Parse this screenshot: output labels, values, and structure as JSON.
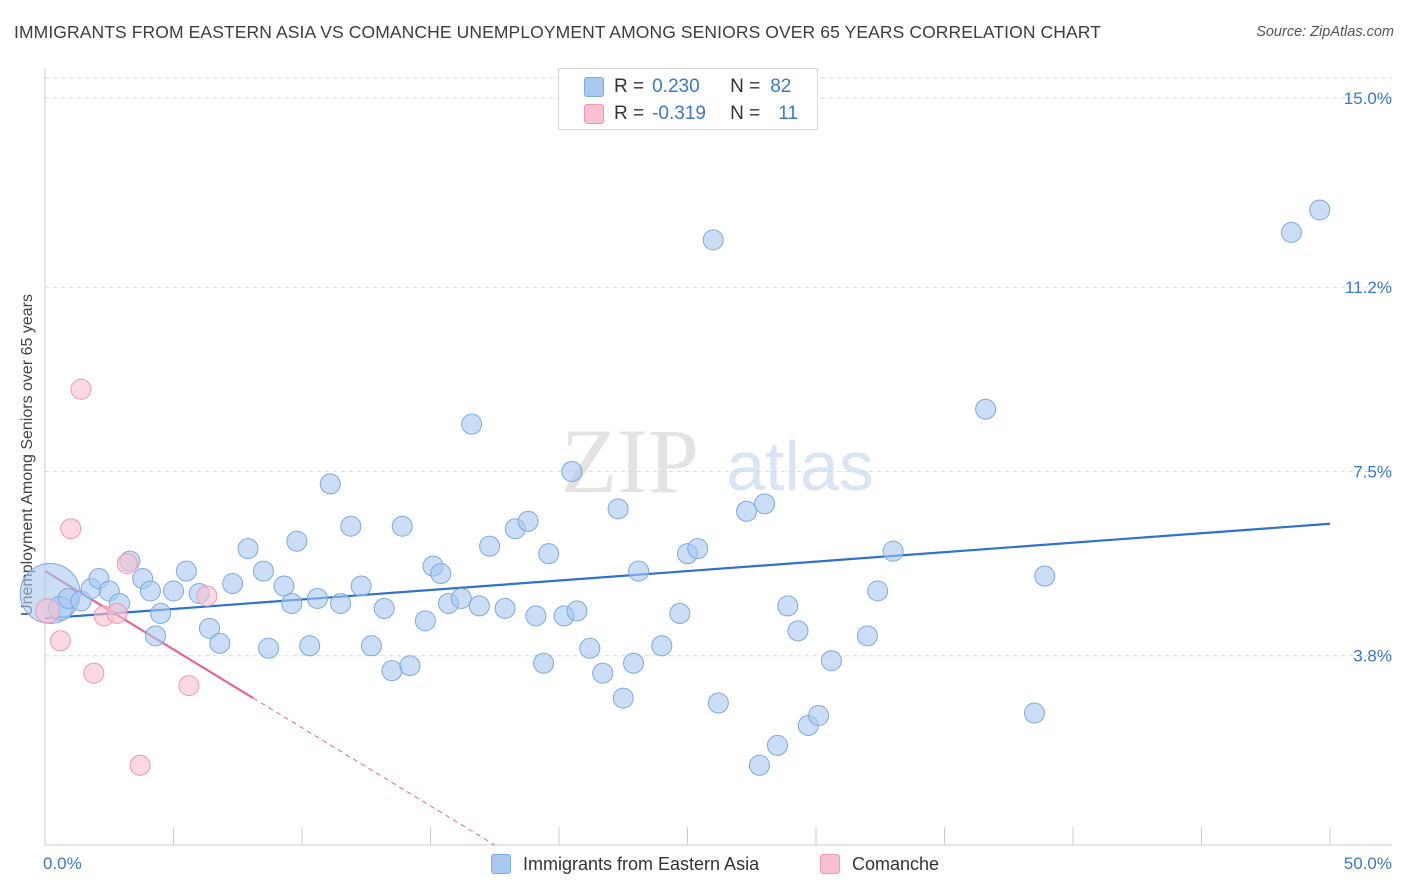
{
  "title": "IMMIGRANTS FROM EASTERN ASIA VS COMANCHE UNEMPLOYMENT AMONG SENIORS OVER 65 YEARS CORRELATION CHART",
  "source": "Source: ZipAtlas.com",
  "watermark": {
    "zip": "ZIP",
    "atlas": "atlas"
  },
  "legend": {
    "series1": {
      "r_label": "R =",
      "r_value": "0.230",
      "n_label": "N =",
      "n_value": "82",
      "color": "#a9c8f0",
      "border": "#7aaae0"
    },
    "series2": {
      "r_label": "R =",
      "r_value": "-0.319",
      "n_label": "N =",
      "n_value": "11",
      "color": "#f7bfd0",
      "border": "#ee98b4"
    }
  },
  "bottom_legend": {
    "series1_label": "Immigrants from Eastern Asia",
    "series2_label": "Comanche"
  },
  "chart_data": {
    "type": "scatter",
    "title": "IMMIGRANTS FROM EASTERN ASIA VS COMANCHE UNEMPLOYMENT AMONG SENIORS OVER 65 YEARS CORRELATION CHART",
    "xlabel": "",
    "ylabel": "Unemployment Among Seniors over 65 years",
    "xlim": [
      0,
      50
    ],
    "ylim": [
      0,
      15.4
    ],
    "x_tick_labels": [
      "0.0%",
      "50.0%"
    ],
    "y_ticks": [
      3.8,
      7.5,
      11.2,
      15.0
    ],
    "y_tick_labels": [
      "3.8%",
      "7.5%",
      "11.2%",
      "15.0%"
    ],
    "grid": "horizontal dashed",
    "series": [
      {
        "name": "Immigrants from Eastern Asia",
        "color": "#a9c8f0",
        "edge": "#7aaae0",
        "trend": {
          "x": [
            0,
            50
          ],
          "y": [
            4.55,
            6.45
          ],
          "color": "#2f72cc"
        },
        "points": [
          [
            0.2,
            5.05,
            30
          ],
          [
            0.6,
            4.75,
            12
          ],
          [
            0.9,
            4.95,
            10
          ],
          [
            1.4,
            4.9,
            10
          ],
          [
            1.8,
            5.15,
            10
          ],
          [
            2.1,
            5.35,
            10
          ],
          [
            2.5,
            5.1,
            10
          ],
          [
            2.9,
            4.85,
            10
          ],
          [
            3.3,
            5.7,
            10
          ],
          [
            3.8,
            5.35,
            10
          ],
          [
            4.1,
            5.1,
            10
          ],
          [
            4.5,
            4.65,
            10
          ],
          [
            5.0,
            5.1,
            10
          ],
          [
            4.3,
            4.2,
            10
          ],
          [
            5.5,
            5.5,
            10
          ],
          [
            6.0,
            5.05,
            10
          ],
          [
            6.4,
            4.35,
            10
          ],
          [
            6.8,
            4.05,
            10
          ],
          [
            7.3,
            5.25,
            10
          ],
          [
            7.9,
            5.95,
            10
          ],
          [
            8.5,
            5.5,
            10
          ],
          [
            8.7,
            3.95,
            10
          ],
          [
            9.3,
            5.2,
            10
          ],
          [
            9.6,
            4.85,
            10
          ],
          [
            9.8,
            6.1,
            10
          ],
          [
            10.3,
            4.0,
            10
          ],
          [
            10.6,
            4.95,
            10
          ],
          [
            11.1,
            7.25,
            10
          ],
          [
            11.5,
            4.85,
            10
          ],
          [
            11.9,
            6.4,
            10
          ],
          [
            12.3,
            5.2,
            10
          ],
          [
            12.7,
            4.0,
            10
          ],
          [
            13.2,
            4.75,
            10
          ],
          [
            13.5,
            3.5,
            10
          ],
          [
            13.9,
            6.4,
            10
          ],
          [
            14.2,
            3.6,
            10
          ],
          [
            14.8,
            4.5,
            10
          ],
          [
            15.1,
            5.6,
            10
          ],
          [
            15.4,
            5.45,
            10
          ],
          [
            15.7,
            4.85,
            10
          ],
          [
            16.2,
            4.95,
            10
          ],
          [
            16.6,
            8.45,
            10
          ],
          [
            16.9,
            4.8,
            10
          ],
          [
            17.3,
            6.0,
            10
          ],
          [
            17.9,
            4.75,
            10
          ],
          [
            18.3,
            6.35,
            10
          ],
          [
            18.8,
            6.5,
            10
          ],
          [
            19.1,
            4.6,
            10
          ],
          [
            19.4,
            3.65,
            10
          ],
          [
            19.6,
            5.85,
            10
          ],
          [
            20.2,
            4.6,
            10
          ],
          [
            20.5,
            7.5,
            10
          ],
          [
            20.7,
            4.7,
            10
          ],
          [
            21.2,
            3.95,
            10
          ],
          [
            21.7,
            3.45,
            10
          ],
          [
            22.3,
            6.75,
            10
          ],
          [
            22.5,
            2.95,
            10
          ],
          [
            22.9,
            3.65,
            10
          ],
          [
            23.1,
            5.5,
            10
          ],
          [
            24.0,
            4.0,
            10
          ],
          [
            24.7,
            4.65,
            10
          ],
          [
            25.0,
            5.85,
            10
          ],
          [
            25.4,
            5.95,
            10
          ],
          [
            26.0,
            12.15,
            10
          ],
          [
            26.2,
            2.85,
            10
          ],
          [
            27.3,
            6.7,
            10
          ],
          [
            27.8,
            1.6,
            10
          ],
          [
            28.0,
            6.85,
            10
          ],
          [
            28.5,
            2.0,
            10
          ],
          [
            28.9,
            4.8,
            10
          ],
          [
            29.3,
            4.3,
            10
          ],
          [
            29.7,
            2.4,
            10
          ],
          [
            30.1,
            2.6,
            10
          ],
          [
            30.6,
            3.7,
            10
          ],
          [
            32.0,
            4.2,
            10
          ],
          [
            32.4,
            5.1,
            10
          ],
          [
            33.0,
            5.9,
            10
          ],
          [
            36.6,
            8.75,
            10
          ],
          [
            38.5,
            2.65,
            10
          ],
          [
            38.9,
            5.4,
            10
          ],
          [
            48.5,
            12.3,
            10
          ],
          [
            49.6,
            12.75,
            10
          ]
        ]
      },
      {
        "name": "Comanche",
        "color": "#f7bfd0",
        "edge": "#ee98b4",
        "trend": {
          "x": [
            0,
            8.1
          ],
          "y": [
            5.5,
            2.95
          ],
          "color": "#e06898",
          "dashed_extension": {
            "x": [
              8.1,
              17.5
            ],
            "y": [
              2.95,
              0.0
            ]
          }
        },
        "points": [
          [
            0.1,
            4.7,
            12
          ],
          [
            0.6,
            4.1,
            10
          ],
          [
            1.0,
            6.35,
            10
          ],
          [
            1.4,
            9.15,
            10
          ],
          [
            1.9,
            3.45,
            10
          ],
          [
            2.3,
            4.6,
            10
          ],
          [
            2.8,
            4.65,
            10
          ],
          [
            3.2,
            5.65,
            10
          ],
          [
            3.7,
            1.6,
            10
          ],
          [
            5.6,
            3.2,
            10
          ],
          [
            6.3,
            5.0,
            10
          ]
        ]
      }
    ]
  }
}
